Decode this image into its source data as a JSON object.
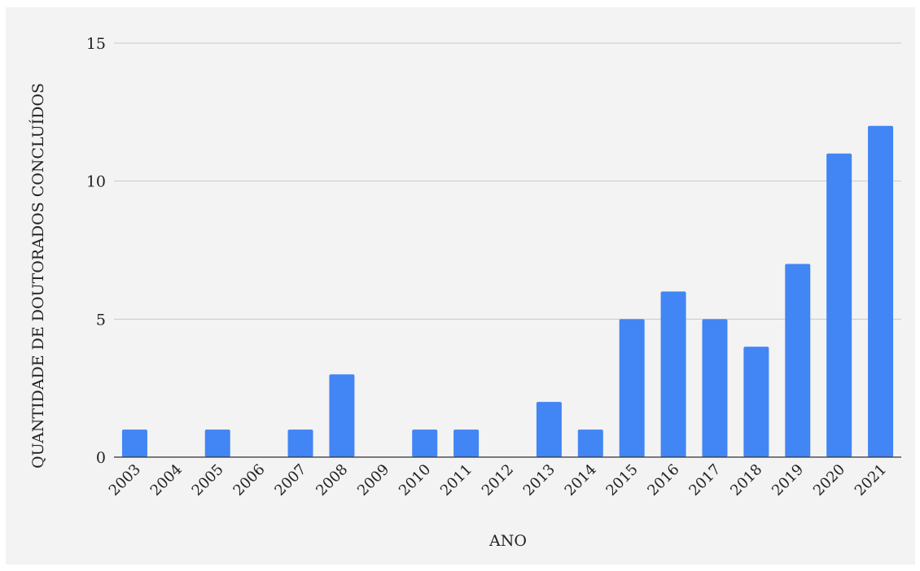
{
  "chart_data": {
    "type": "bar",
    "title": "",
    "xlabel": "ANO",
    "ylabel": "QUANTIDADE DE DOUTORADOS CONCLUÍDOS",
    "categories": [
      "2003",
      "2004",
      "2005",
      "2006",
      "2007",
      "2008",
      "2009",
      "2010",
      "2011",
      "2012",
      "2013",
      "2014",
      "2015",
      "2016",
      "2017",
      "2018",
      "2019",
      "2020",
      "2021"
    ],
    "values": [
      1,
      0,
      1,
      0,
      1,
      3,
      0,
      1,
      1,
      0,
      2,
      1,
      5,
      6,
      5,
      4,
      7,
      11,
      12
    ],
    "ylim": [
      0,
      15
    ],
    "yticks": [
      0,
      5,
      10,
      15
    ],
    "grid": true,
    "legend": "none",
    "colors": {
      "bar": "#4285f4",
      "background": "#f3f3f3",
      "gridline": "#c8c8c8",
      "axis": "#333333"
    }
  }
}
